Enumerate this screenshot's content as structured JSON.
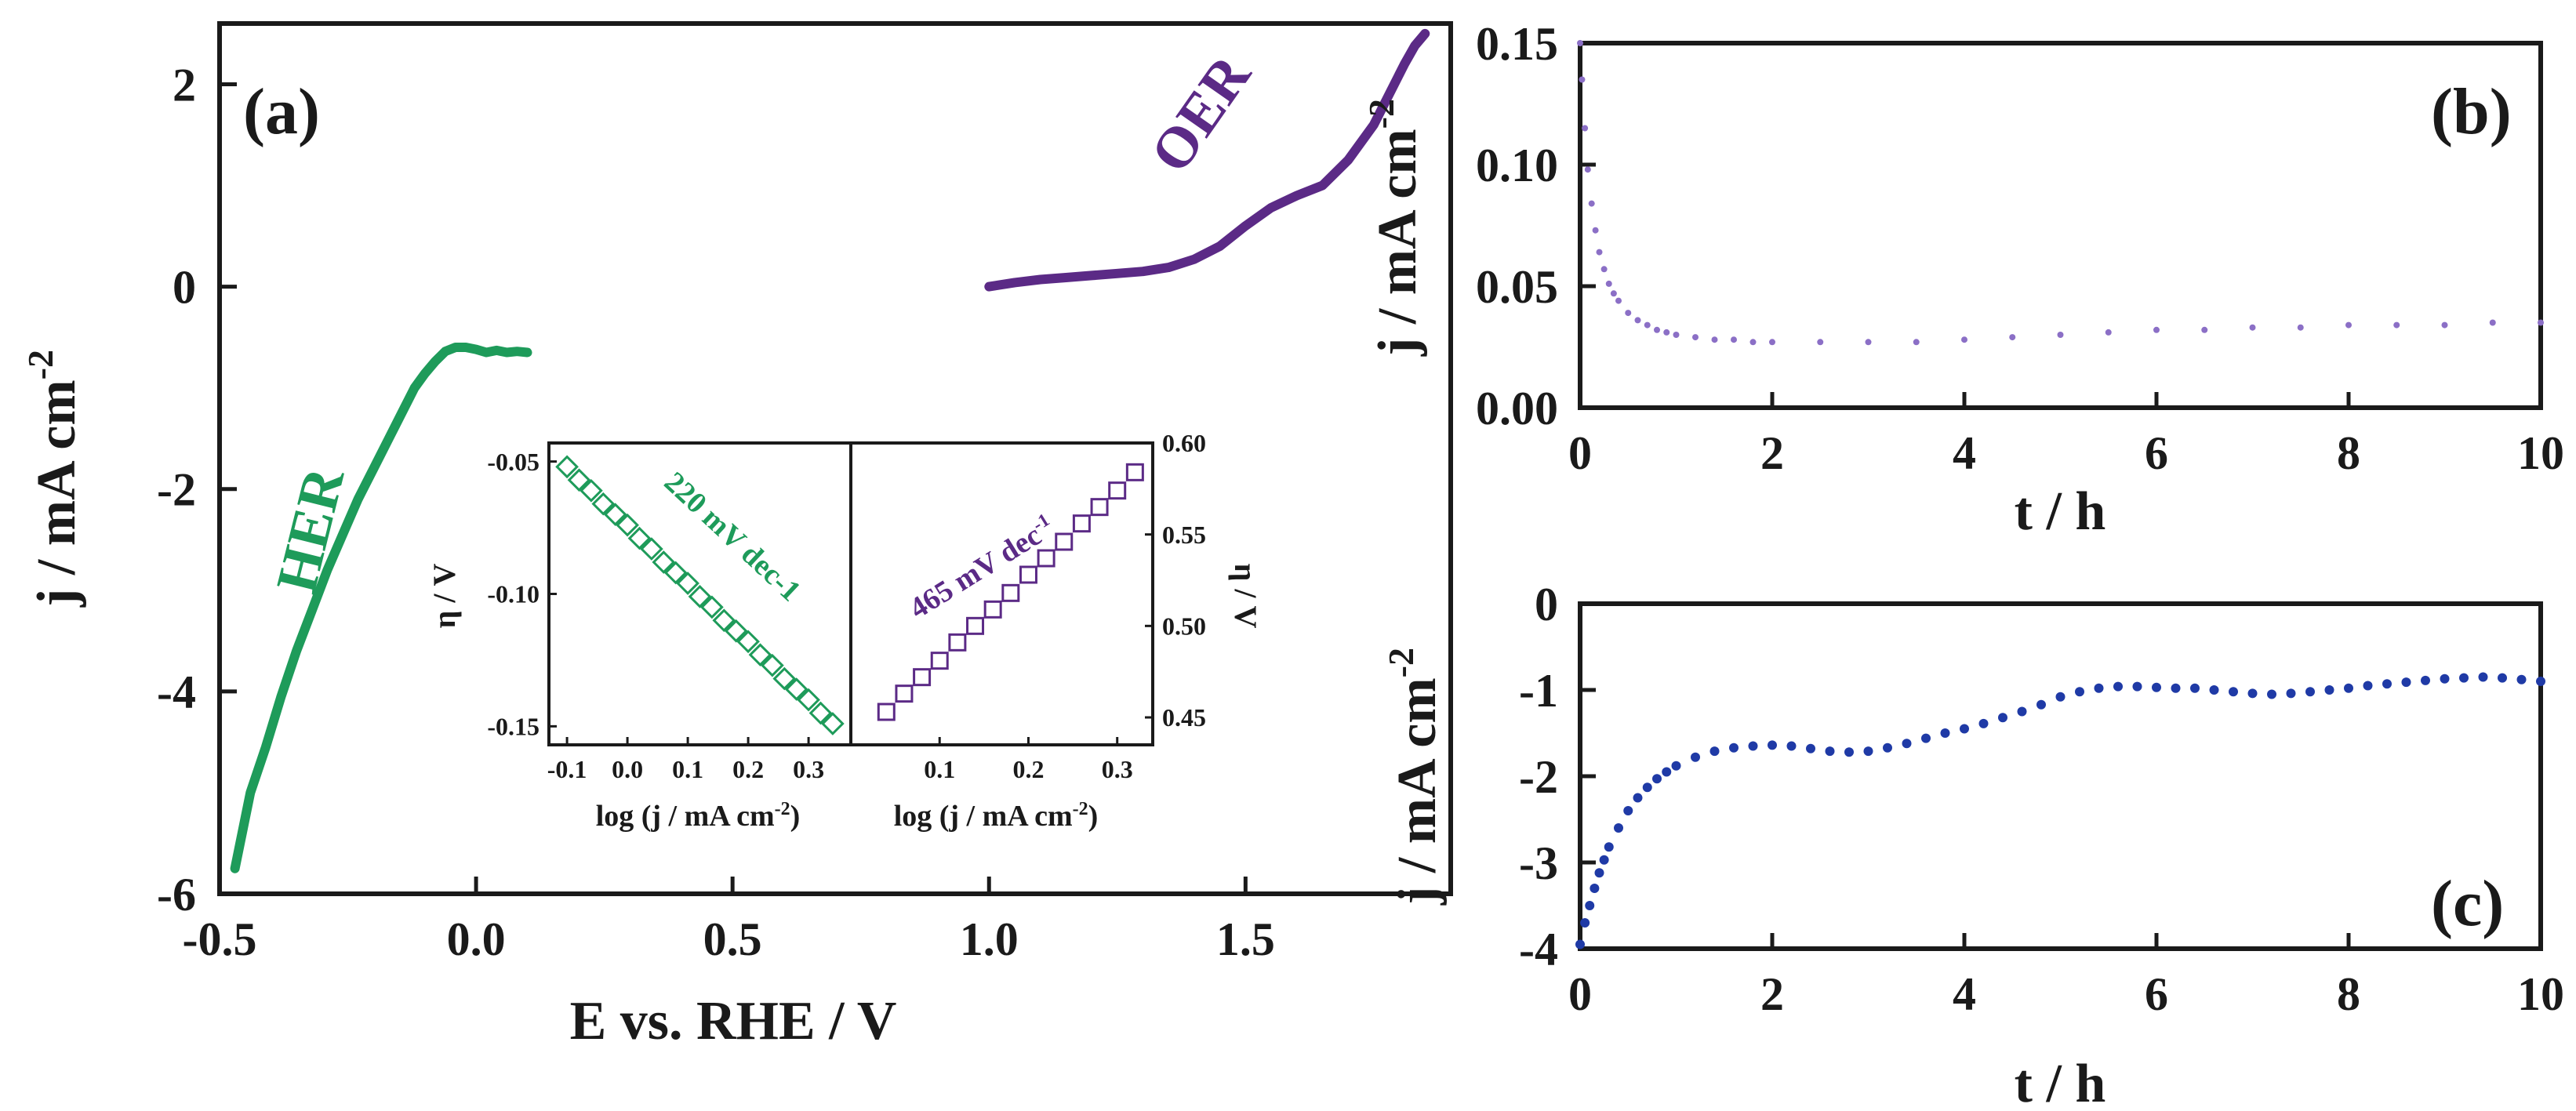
{
  "chart_data": [
    {
      "panel": "(a)",
      "type": "line",
      "xlabel": "E vs. RHE / V",
      "ylabel_main": "j / mA cm",
      "ylabel_sup": "-2",
      "xlim": [
        -0.5,
        1.9
      ],
      "ylim": [
        -6,
        2.6
      ],
      "xticks": [
        -0.5,
        0.0,
        0.5,
        1.0,
        1.5
      ],
      "xtick_labels": [
        "-0.5",
        "0.0",
        "0.5",
        "1.0",
        "1.5"
      ],
      "yticks": [
        -6,
        -4,
        -2,
        0,
        2
      ],
      "ytick_labels": [
        "-6",
        "-4",
        "-2",
        "0",
        "2"
      ],
      "annotations": [
        "HER",
        "OER"
      ],
      "colors": {
        "HER": "#1e9b5a",
        "OER": "#5b2a86"
      },
      "series": [
        {
          "name": "HER",
          "x": [
            -0.47,
            -0.44,
            -0.41,
            -0.38,
            -0.35,
            -0.32,
            -0.29,
            -0.26,
            -0.23,
            -0.2,
            -0.17,
            -0.14,
            -0.12,
            -0.1,
            -0.08,
            -0.06,
            -0.04,
            -0.02,
            0.0,
            0.02,
            0.04,
            0.06,
            0.08,
            0.1
          ],
          "y": [
            -5.75,
            -5.0,
            -4.55,
            -4.05,
            -3.6,
            -3.2,
            -2.8,
            -2.45,
            -2.1,
            -1.8,
            -1.5,
            -1.2,
            -1.0,
            -0.86,
            -0.74,
            -0.64,
            -0.6,
            -0.6,
            -0.62,
            -0.65,
            -0.63,
            -0.65,
            -0.64,
            -0.65
          ]
        },
        {
          "name": "OER",
          "x": [
            1.0,
            1.05,
            1.1,
            1.15,
            1.2,
            1.25,
            1.3,
            1.35,
            1.4,
            1.45,
            1.5,
            1.55,
            1.6,
            1.65,
            1.7,
            1.75,
            1.78,
            1.81,
            1.83,
            1.85
          ],
          "y": [
            0.0,
            0.04,
            0.07,
            0.09,
            0.11,
            0.13,
            0.15,
            0.19,
            0.27,
            0.4,
            0.6,
            0.78,
            0.9,
            1.0,
            1.25,
            1.6,
            1.9,
            2.2,
            2.38,
            2.5
          ]
        }
      ]
    },
    {
      "panel": "inset-HER",
      "type": "scatter",
      "xlabel": "log (j / mA cm",
      "xlabel_sup": "-2",
      "xlabel_end": ")",
      "ylabel": "η / V",
      "xlim": [
        -0.13,
        0.37
      ],
      "ylim": [
        -0.157,
        -0.043
      ],
      "xticks": [
        -0.1,
        0.0,
        0.1,
        0.2,
        0.3
      ],
      "xtick_labels": [
        "-0.1",
        "0.0",
        "0.1",
        "0.2",
        "0.3"
      ],
      "yticks": [
        -0.05,
        -0.1,
        -0.15
      ],
      "ytick_labels": [
        "-0.05",
        "-0.10",
        "-0.15"
      ],
      "annotation": "220 mV dec-1",
      "color": "#1e9b5a",
      "x": [
        -0.1,
        -0.08,
        -0.06,
        -0.04,
        -0.02,
        0.0,
        0.02,
        0.04,
        0.06,
        0.08,
        0.1,
        0.12,
        0.14,
        0.16,
        0.18,
        0.2,
        0.22,
        0.24,
        0.26,
        0.28,
        0.3,
        0.32,
        0.34
      ],
      "y": [
        -0.052,
        -0.057,
        -0.061,
        -0.066,
        -0.07,
        -0.074,
        -0.079,
        -0.083,
        -0.088,
        -0.092,
        -0.096,
        -0.101,
        -0.105,
        -0.11,
        -0.114,
        -0.118,
        -0.123,
        -0.127,
        -0.132,
        -0.136,
        -0.14,
        -0.145,
        -0.149
      ]
    },
    {
      "panel": "inset-OER",
      "type": "scatter",
      "xlabel": "log (j / mA cm",
      "xlabel_sup": "-2",
      "xlabel_end": ")",
      "ylabel": "η / V",
      "xlim": [
        0.0,
        0.34
      ],
      "ylim": [
        0.435,
        0.6
      ],
      "xticks": [
        0.1,
        0.2,
        0.3
      ],
      "xtick_labels": [
        "0.1",
        "0.2",
        "0.3"
      ],
      "yticks": [
        0.45,
        0.5,
        0.55,
        0.6
      ],
      "ytick_labels": [
        "0.45",
        "0.50",
        "0.55",
        "0.60"
      ],
      "annotation": "465 mV dec",
      "annotation_sup": "-1",
      "color": "#5b2a86",
      "x": [
        0.04,
        0.06,
        0.08,
        0.1,
        0.12,
        0.14,
        0.16,
        0.18,
        0.2,
        0.22,
        0.24,
        0.26,
        0.28,
        0.3,
        0.32
      ],
      "y": [
        0.453,
        0.463,
        0.472,
        0.481,
        0.491,
        0.5,
        0.509,
        0.518,
        0.528,
        0.537,
        0.546,
        0.556,
        0.565,
        0.574,
        0.584
      ]
    },
    {
      "panel": "(b)",
      "type": "scatter",
      "xlabel": "t / h",
      "ylabel_main": "j / mA cm",
      "ylabel_sup": "-2",
      "xlim": [
        0,
        10
      ],
      "ylim": [
        0,
        0.15
      ],
      "xticks": [
        0,
        2,
        4,
        6,
        8,
        10
      ],
      "xtick_labels": [
        "0",
        "2",
        "4",
        "6",
        "8",
        "10"
      ],
      "yticks": [
        0,
        0.05,
        0.1,
        0.15
      ],
      "ytick_labels": [
        "0.00",
        "0.05",
        "0.10",
        "0.15"
      ],
      "color": "#8b6fc6",
      "x": [
        0.0,
        0.02,
        0.05,
        0.08,
        0.12,
        0.16,
        0.2,
        0.25,
        0.3,
        0.35,
        0.4,
        0.5,
        0.6,
        0.7,
        0.8,
        0.9,
        1.0,
        1.2,
        1.4,
        1.6,
        1.8,
        2.0,
        2.5,
        3.0,
        3.5,
        4.0,
        4.5,
        5.0,
        5.5,
        6.0,
        6.5,
        7.0,
        7.5,
        8.0,
        8.5,
        9.0,
        9.5,
        10.0
      ],
      "y": [
        0.15,
        0.135,
        0.115,
        0.098,
        0.084,
        0.073,
        0.064,
        0.057,
        0.051,
        0.047,
        0.044,
        0.039,
        0.036,
        0.034,
        0.032,
        0.031,
        0.03,
        0.029,
        0.028,
        0.028,
        0.027,
        0.027,
        0.027,
        0.027,
        0.027,
        0.028,
        0.029,
        0.03,
        0.031,
        0.032,
        0.032,
        0.033,
        0.033,
        0.034,
        0.034,
        0.034,
        0.035,
        0.035
      ]
    },
    {
      "panel": "(c)",
      "type": "scatter",
      "xlabel": "t / h",
      "ylabel_main": "j / mA cm",
      "ylabel_sup": "-2",
      "xlim": [
        0,
        10
      ],
      "ylim": [
        -4,
        0
      ],
      "xticks": [
        0,
        2,
        4,
        6,
        8,
        10
      ],
      "xtick_labels": [
        "0",
        "2",
        "4",
        "6",
        "8",
        "10"
      ],
      "yticks": [
        0,
        -1,
        -2,
        -3,
        -4
      ],
      "ytick_labels": [
        "0",
        "-1",
        "-2",
        "-3",
        "-4"
      ],
      "color": "#1f3aa6",
      "x": [
        0.0,
        0.05,
        0.1,
        0.15,
        0.2,
        0.25,
        0.3,
        0.4,
        0.5,
        0.6,
        0.7,
        0.8,
        0.9,
        1.0,
        1.2,
        1.4,
        1.6,
        1.8,
        2.0,
        2.2,
        2.4,
        2.6,
        2.8,
        3.0,
        3.2,
        3.4,
        3.6,
        3.8,
        4.0,
        4.2,
        4.4,
        4.6,
        4.8,
        5.0,
        5.2,
        5.4,
        5.6,
        5.8,
        6.0,
        6.2,
        6.4,
        6.6,
        6.8,
        7.0,
        7.2,
        7.4,
        7.6,
        7.8,
        8.0,
        8.2,
        8.4,
        8.6,
        8.8,
        9.0,
        9.2,
        9.4,
        9.6,
        9.8,
        10.0
      ],
      "y": [
        -3.95,
        -3.7,
        -3.5,
        -3.3,
        -3.12,
        -2.97,
        -2.82,
        -2.6,
        -2.4,
        -2.25,
        -2.13,
        -2.03,
        -1.95,
        -1.88,
        -1.78,
        -1.71,
        -1.67,
        -1.65,
        -1.64,
        -1.65,
        -1.68,
        -1.71,
        -1.72,
        -1.71,
        -1.67,
        -1.62,
        -1.56,
        -1.5,
        -1.45,
        -1.39,
        -1.32,
        -1.25,
        -1.17,
        -1.08,
        -1.02,
        -0.98,
        -0.96,
        -0.96,
        -0.97,
        -0.98,
        -0.98,
        -1.0,
        -1.02,
        -1.04,
        -1.05,
        -1.04,
        -1.02,
        -1.0,
        -0.98,
        -0.95,
        -0.93,
        -0.91,
        -0.89,
        -0.87,
        -0.86,
        -0.85,
        -0.86,
        -0.88,
        -0.9
      ]
    }
  ]
}
